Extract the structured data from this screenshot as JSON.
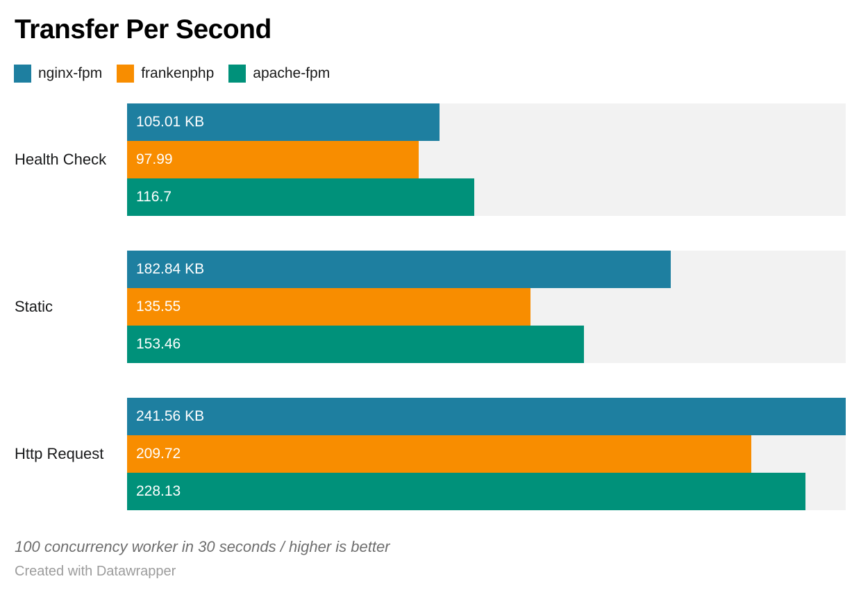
{
  "title": "Transfer Per Second",
  "legend": [
    {
      "label": "nginx-fpm",
      "color": "#1e7fa0"
    },
    {
      "label": "frankenphp",
      "color": "#f88d00"
    },
    {
      "label": "apache-fpm",
      "color": "#00917a"
    }
  ],
  "footer": {
    "note": "100 concurrency worker in 30 seconds / higher is better",
    "credit": "Created with Datawrapper"
  },
  "chart_data": {
    "type": "bar",
    "orientation": "horizontal",
    "title": "Transfer Per Second",
    "categories": [
      "Health Check",
      "Static",
      "Http Request"
    ],
    "series": [
      {
        "name": "nginx-fpm",
        "color": "#1e7fa0",
        "values": [
          105.01,
          182.84,
          241.56
        ],
        "labels": [
          "105.01 KB",
          "182.84 KB",
          "241.56 KB"
        ]
      },
      {
        "name": "frankenphp",
        "color": "#f88d00",
        "values": [
          97.99,
          135.55,
          209.72
        ],
        "labels": [
          "97.99",
          "135.55",
          "209.72"
        ]
      },
      {
        "name": "apache-fpm",
        "color": "#00917a",
        "values": [
          116.7,
          153.46,
          228.13
        ],
        "labels": [
          "116.7",
          "153.46",
          "228.13"
        ]
      }
    ],
    "unit": "KB",
    "xlim": [
      0,
      241.56
    ],
    "grid": false,
    "legend_position": "top",
    "track_color": "#f2f2f2",
    "value_labels": "inside-start"
  }
}
